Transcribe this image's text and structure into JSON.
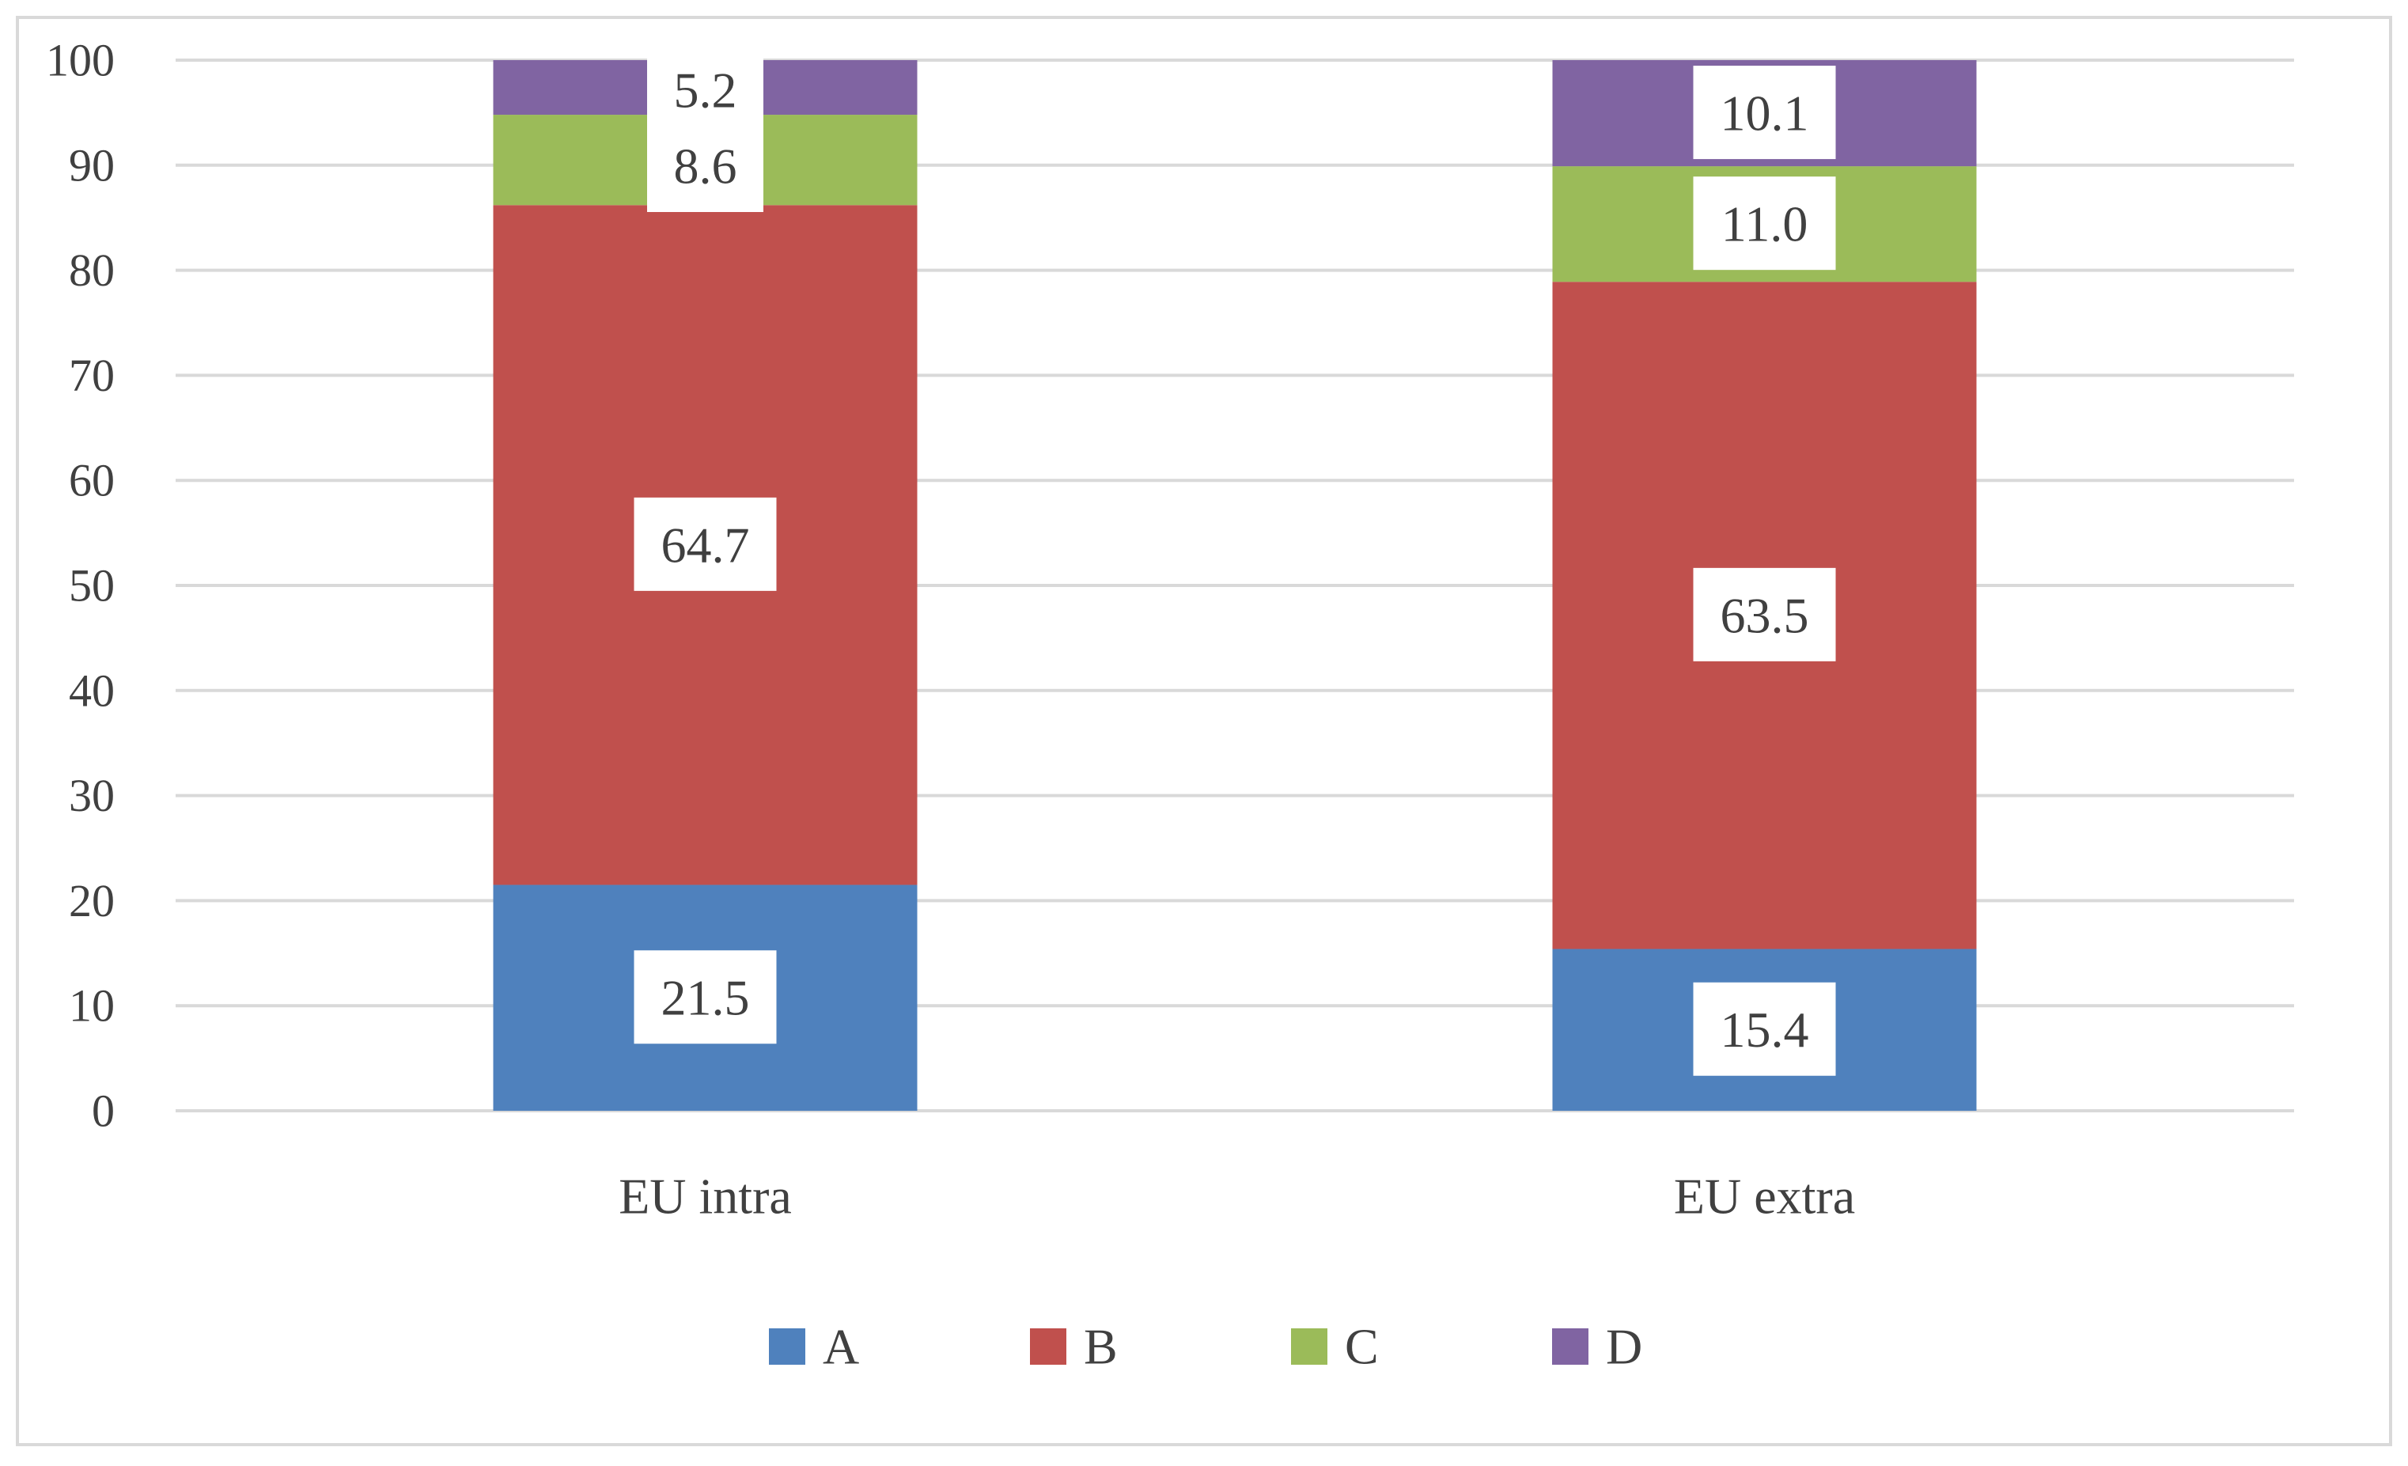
{
  "chart_data": {
    "type": "bar",
    "stacked": true,
    "title": "",
    "xlabel": "",
    "ylabel": "",
    "ylim": [
      0,
      100
    ],
    "yticks": [
      0,
      10,
      20,
      30,
      40,
      50,
      60,
      70,
      80,
      90,
      100
    ],
    "categories": [
      "EU intra",
      "EU extra"
    ],
    "series": [
      {
        "name": "A",
        "color": "#4f81bd",
        "values": [
          21.5,
          15.4
        ],
        "labels": [
          "21.5",
          "15.4"
        ]
      },
      {
        "name": "B",
        "color": "#c0504d",
        "values": [
          64.7,
          63.5
        ],
        "labels": [
          "64.7",
          "63.5"
        ]
      },
      {
        "name": "C",
        "color": "#9bbb59",
        "values": [
          8.6,
          11.0
        ],
        "labels": [
          "8.6",
          "11.0"
        ]
      },
      {
        "name": "D",
        "color": "#8064a2",
        "values": [
          5.2,
          10.1
        ],
        "labels": [
          "5.2",
          "10.1"
        ]
      }
    ],
    "grid": true,
    "legend_position": "bottom"
  }
}
